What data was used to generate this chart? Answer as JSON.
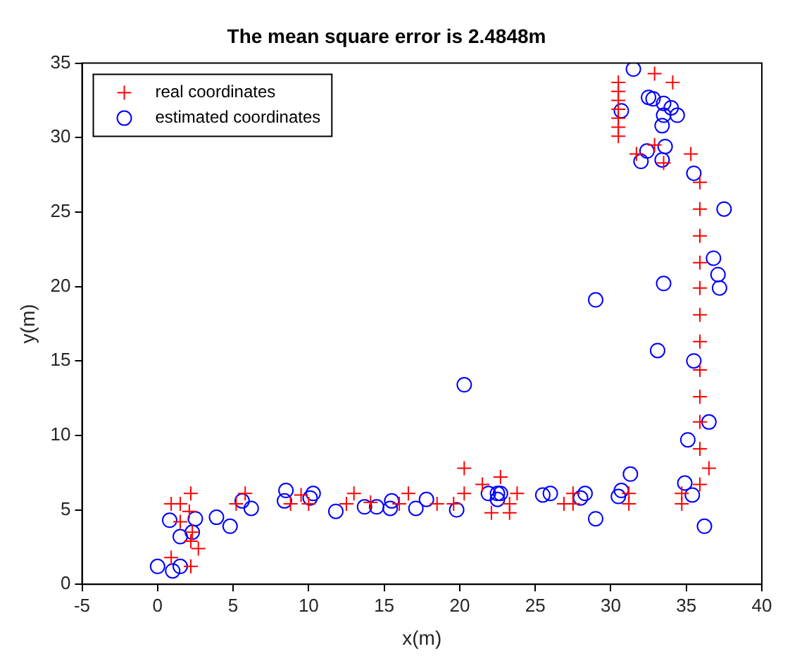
{
  "chart_data": {
    "type": "scatter",
    "title": "The mean square error is 2.4848m",
    "xlabel": "x(m)",
    "ylabel": "y(m)",
    "xlim": [
      -5,
      40
    ],
    "xticks": [
      -5,
      0,
      5,
      10,
      15,
      20,
      25,
      30,
      35,
      40
    ],
    "ylim": [
      0,
      35
    ],
    "yticks": [
      0,
      5,
      10,
      15,
      20,
      25,
      30,
      35
    ],
    "grid": false,
    "legend": "top left",
    "series": [
      {
        "name": "real coordinates",
        "color": "#ff0000",
        "marker": "cross",
        "x": [
          0.9,
          1.5,
          2.2,
          2.1,
          1.5,
          2.3,
          2.2,
          2.7,
          0.9,
          2.2,
          5.2,
          5.8,
          9.5,
          8.8,
          10.0,
          12.5,
          13.0,
          14.1,
          16.0,
          16.6,
          18.5,
          19.6,
          20.3,
          20.3,
          21.5,
          22.7,
          22.1,
          23.3,
          23.3,
          23.8,
          26.9,
          27.5,
          27.5,
          31.2,
          31.2,
          34.7,
          34.7,
          35.9,
          36.5,
          35.9,
          35.9,
          35.9,
          35.9,
          35.9,
          35.9,
          35.9,
          35.9,
          35.9,
          35.9,
          35.9,
          35.3,
          33.5,
          32.9,
          31.7,
          30.5,
          30.5,
          30.5,
          30.5,
          30.5,
          30.5,
          30.5,
          32.9,
          34.1
        ],
        "values": [
          5.4,
          5.4,
          6.1,
          4.9,
          4.2,
          3.5,
          2.9,
          2.4,
          1.8,
          1.2,
          5.4,
          6.1,
          6.0,
          5.4,
          5.4,
          5.4,
          6.1,
          5.5,
          5.4,
          6.1,
          5.4,
          5.4,
          6.1,
          7.8,
          6.7,
          7.2,
          4.8,
          4.8,
          5.4,
          6.1,
          5.4,
          5.4,
          6.1,
          6.1,
          5.4,
          6.1,
          5.4,
          6.7,
          7.8,
          9.1,
          10.9,
          12.6,
          14.4,
          16.3,
          18.1,
          19.9,
          21.6,
          23.4,
          25.2,
          27.0,
          28.9,
          28.3,
          29.5,
          28.9,
          33.7,
          33.1,
          32.5,
          31.9,
          31.3,
          30.7,
          30.1,
          34.3,
          33.7
        ]
      },
      {
        "name": "estimated coordinates",
        "color": "#0000ff",
        "marker": "circle",
        "x": [
          0,
          1.0,
          1.5,
          0.8,
          1.5,
          2.3,
          2.5,
          3.9,
          4.8,
          5.6,
          6.2,
          8.5,
          8.4,
          10.3,
          10.1,
          11.8,
          13.7,
          14.5,
          15.4,
          15.5,
          17.1,
          17.8,
          19.8,
          20.3,
          21.9,
          22.5,
          22.7,
          22.5,
          25.5,
          26.0,
          28.0,
          28.3,
          29.0,
          30.5,
          30.7,
          31.3,
          34.9,
          35.4,
          36.2,
          35.1,
          36.5,
          35.5,
          33.1,
          29.0,
          33.5,
          37.2,
          37.1,
          36.8,
          37.5,
          35.5,
          33.6,
          33.4,
          32.4,
          32.0,
          31.5,
          30.7,
          32.5,
          32.8,
          33.5,
          34.0,
          34.4,
          33.5,
          33.4
        ],
        "values": [
          1.2,
          0.9,
          1.2,
          4.3,
          3.2,
          3.5,
          4.4,
          4.5,
          3.9,
          5.6,
          5.1,
          6.3,
          5.6,
          6.1,
          5.8,
          4.9,
          5.2,
          5.2,
          5.1,
          5.6,
          5.1,
          5.7,
          5.0,
          13.4,
          6.1,
          6.1,
          6.1,
          5.7,
          6.0,
          6.1,
          5.8,
          6.1,
          4.4,
          5.9,
          6.3,
          7.4,
          6.8,
          6.0,
          3.9,
          9.7,
          10.9,
          15.0,
          15.7,
          19.1,
          20.2,
          19.9,
          20.8,
          21.9,
          25.2,
          27.6,
          29.4,
          28.5,
          29.1,
          28.4,
          34.6,
          31.8,
          32.7,
          32.6,
          32.3,
          32.0,
          31.5,
          31.5,
          30.8
        ]
      }
    ]
  }
}
